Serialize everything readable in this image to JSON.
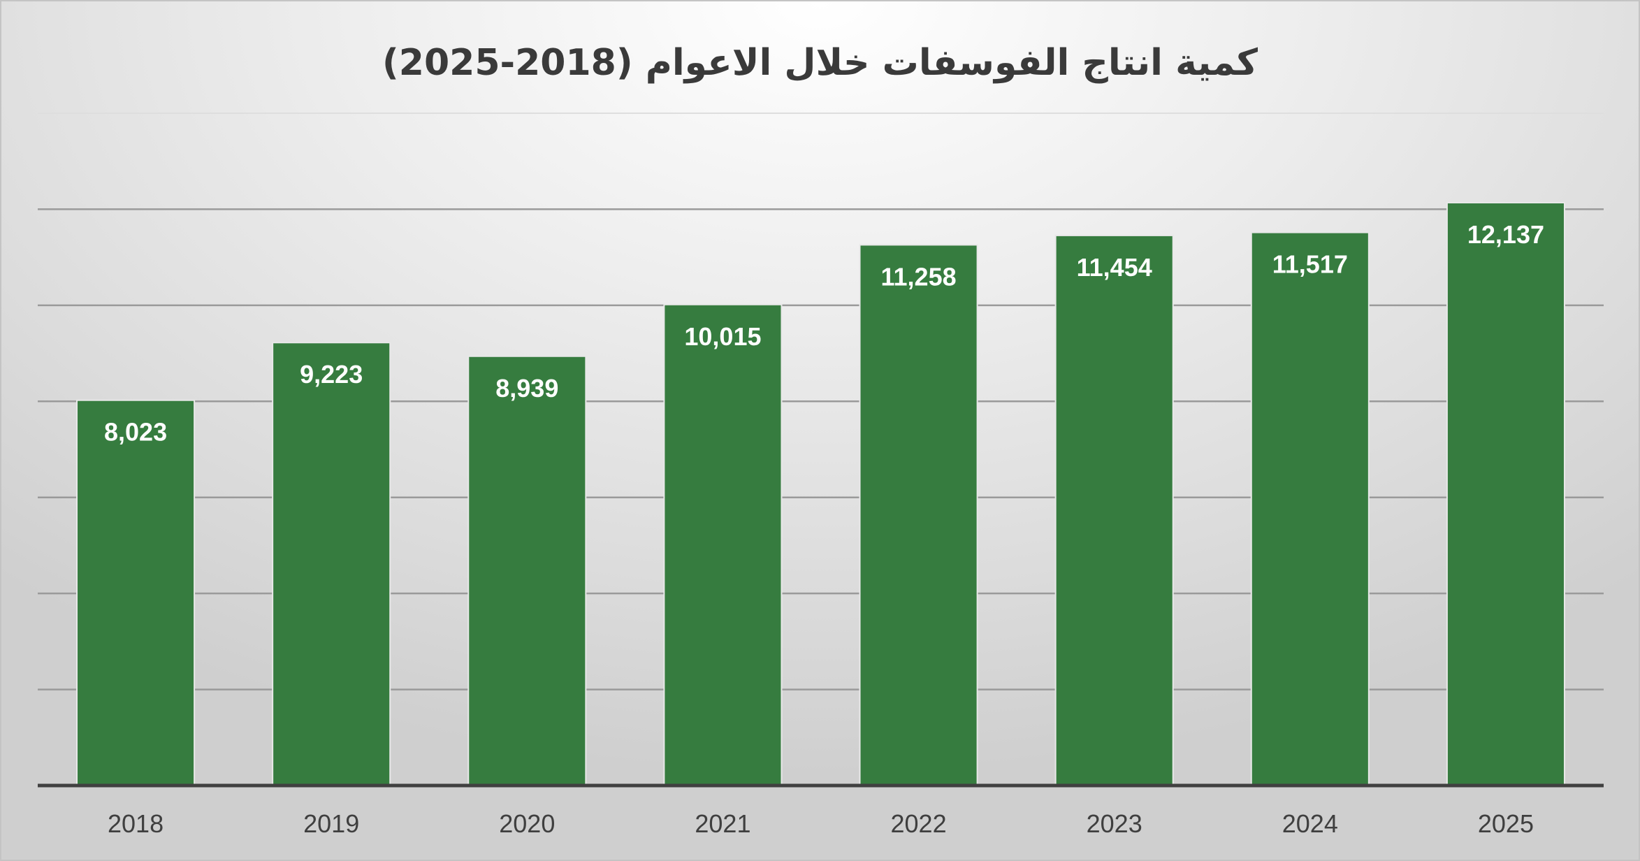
{
  "chart_data": {
    "type": "bar",
    "title": "كمية انتاج الفوسفات خلال الاعوام (2018-2025)",
    "categories": [
      "2018",
      "2019",
      "2020",
      "2021",
      "2022",
      "2023",
      "2024",
      "2025"
    ],
    "values": [
      8023,
      9223,
      8939,
      10015,
      11258,
      11454,
      11517,
      12137
    ],
    "data_labels": [
      "8,023",
      "9,223",
      "8,939",
      "10,015",
      "11,258",
      "11,454",
      "11,517",
      "12,137"
    ],
    "xlabel": "",
    "ylabel": "",
    "ylim": [
      0,
      14000
    ],
    "y_axis_labels_visible": false,
    "grid": true,
    "legend": "none",
    "colors": {
      "bar": "#367c3f",
      "bar_label": "#ffffff"
    }
  }
}
